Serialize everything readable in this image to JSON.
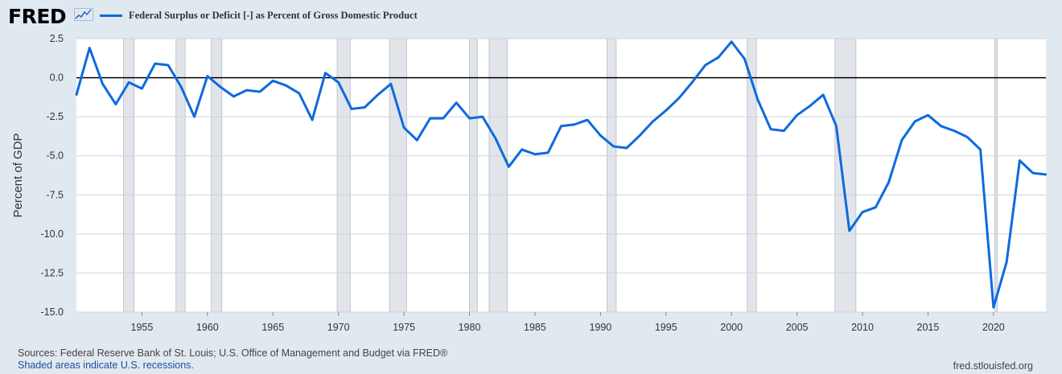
{
  "header": {
    "logo_text": "FRED",
    "series_label": "Federal Surplus or Deficit [-] as Percent of Gross Domestic Product",
    "series_color": "#0d6adf"
  },
  "footer": {
    "sources": "Sources: Federal Reserve Bank of St. Louis; U.S. Office of Management and Budget via FRED®",
    "recession_note": "Shaded areas indicate U.S. recessions.",
    "site": "fred.stlouisfed.org"
  },
  "chart_data": {
    "type": "line",
    "title": "Federal Surplus or Deficit [-] as Percent of Gross Domestic Product",
    "xlabel": "",
    "ylabel": "Percent of GDP",
    "xlim": [
      1950,
      2024
    ],
    "ylim": [
      -15,
      2.5
    ],
    "yticks": [
      2.5,
      0.0,
      -2.5,
      -5.0,
      -7.5,
      -10.0,
      -12.5,
      -15.0
    ],
    "ytick_labels": [
      "2.5",
      "0.0",
      "-2.5",
      "-5.0",
      "-7.5",
      "-10.0",
      "-12.5",
      "-15.0"
    ],
    "xticks": [
      1955,
      1960,
      1965,
      1970,
      1975,
      1980,
      1985,
      1990,
      1995,
      2000,
      2005,
      2010,
      2015,
      2020
    ],
    "zero_line": 0,
    "recessions": [
      [
        1953.6,
        1954.4
      ],
      [
        1957.6,
        1958.3
      ],
      [
        1960.3,
        1961.1
      ],
      [
        1969.9,
        1970.9
      ],
      [
        1973.9,
        1975.2
      ],
      [
        1980.0,
        1980.6
      ],
      [
        1981.5,
        1982.9
      ],
      [
        1990.5,
        1991.2
      ],
      [
        2001.2,
        2001.9
      ],
      [
        2007.9,
        2009.5
      ],
      [
        2020.1,
        2020.3
      ]
    ],
    "series": [
      {
        "name": "Federal Surplus or Deficit [-] as Percent of Gross Domestic Product",
        "color": "#0d6adf",
        "x": [
          1950,
          1951,
          1952,
          1953,
          1954,
          1955,
          1956,
          1957,
          1958,
          1959,
          1960,
          1961,
          1962,
          1963,
          1964,
          1965,
          1966,
          1967,
          1968,
          1969,
          1970,
          1971,
          1972,
          1973,
          1974,
          1975,
          1976,
          1977,
          1978,
          1979,
          1980,
          1981,
          1982,
          1983,
          1984,
          1985,
          1986,
          1987,
          1988,
          1989,
          1990,
          1991,
          1992,
          1993,
          1994,
          1995,
          1996,
          1997,
          1998,
          1999,
          2000,
          2001,
          2002,
          2003,
          2004,
          2005,
          2006,
          2007,
          2008,
          2009,
          2010,
          2011,
          2012,
          2013,
          2014,
          2015,
          2016,
          2017,
          2018,
          2019,
          2020,
          2021,
          2022,
          2023,
          2024
        ],
        "values": [
          -1.1,
          1.9,
          -0.4,
          -1.7,
          -0.3,
          -0.7,
          0.9,
          0.8,
          -0.6,
          -2.5,
          0.1,
          -0.6,
          -1.2,
          -0.8,
          -0.9,
          -0.2,
          -0.5,
          -1.0,
          -2.7,
          0.3,
          -0.3,
          -2.0,
          -1.9,
          -1.1,
          -0.4,
          -3.2,
          -4.0,
          -2.6,
          -2.6,
          -1.6,
          -2.6,
          -2.5,
          -3.9,
          -5.7,
          -4.6,
          -4.9,
          -4.8,
          -3.1,
          -3.0,
          -2.7,
          -3.7,
          -4.4,
          -4.5,
          -3.7,
          -2.8,
          -2.1,
          -1.3,
          -0.3,
          0.8,
          1.3,
          2.3,
          1.2,
          -1.4,
          -3.3,
          -3.4,
          -2.4,
          -1.8,
          -1.1,
          -3.1,
          -9.8,
          -8.6,
          -8.3,
          -6.7,
          -4.0,
          -2.8,
          -2.4,
          -3.1,
          -3.4,
          -3.8,
          -4.6,
          -14.7,
          -11.8,
          -5.3,
          -6.1,
          -6.2
        ]
      }
    ]
  }
}
